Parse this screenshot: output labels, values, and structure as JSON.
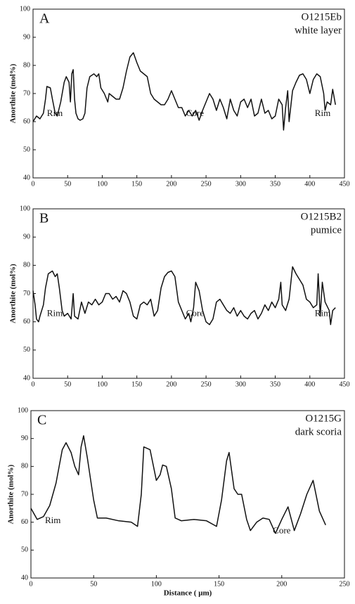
{
  "chart_data": [
    {
      "type": "line",
      "panel_label": "A",
      "sample": "O1215Eb",
      "description": "white layer",
      "ylabel": "Anorthite (mol%)",
      "annotations": [
        "Rim",
        "Core",
        "Rim"
      ],
      "color": "#111111",
      "x": [
        0,
        5,
        10,
        15,
        18,
        20,
        25,
        28,
        32,
        35,
        40,
        45,
        48,
        52,
        54,
        56,
        58,
        60,
        62,
        65,
        68,
        72,
        75,
        78,
        82,
        88,
        92,
        95,
        98,
        103,
        108,
        110,
        115,
        120,
        125,
        130,
        135,
        140,
        145,
        150,
        155,
        160,
        165,
        170,
        175,
        180,
        185,
        190,
        195,
        200,
        205,
        210,
        215,
        220,
        225,
        230,
        235,
        240,
        245,
        250,
        255,
        260,
        265,
        270,
        275,
        280,
        285,
        290,
        295,
        300,
        305,
        310,
        315,
        320,
        325,
        330,
        335,
        340,
        345,
        350,
        355,
        360,
        362,
        365,
        368,
        370,
        375,
        380,
        385,
        390,
        395,
        400,
        405,
        410,
        415,
        420,
        422,
        425,
        430,
        433,
        437
      ],
      "values": [
        60,
        62,
        61,
        63,
        68,
        72.5,
        72,
        68,
        63,
        62,
        67,
        74,
        76,
        74,
        67,
        77,
        78.5,
        68,
        63,
        61,
        60.5,
        61,
        63,
        72,
        76,
        77,
        76,
        77,
        72,
        70,
        67,
        70,
        69,
        68,
        68,
        72,
        78,
        83,
        84.5,
        81,
        78,
        77,
        76,
        70,
        68,
        67,
        66,
        66,
        68,
        71,
        68,
        65,
        65,
        62,
        64,
        62,
        64,
        60.5,
        64,
        67,
        70,
        68,
        64,
        68,
        65,
        61,
        68,
        64,
        62,
        67,
        68,
        65,
        68,
        62,
        63,
        68,
        63,
        64,
        61,
        62,
        68,
        66,
        57,
        65,
        71,
        60,
        71,
        74,
        76.5,
        77,
        75,
        70,
        75,
        77,
        76,
        70,
        64,
        67,
        66,
        71.5,
        66
      ],
      "xlim": [
        0,
        450
      ],
      "xticks": [
        0,
        50,
        100,
        150,
        200,
        250,
        300,
        350,
        400,
        450
      ],
      "ylim": [
        40,
        100
      ],
      "yticks": [
        40,
        50,
        60,
        70,
        80,
        90,
        100
      ]
    },
    {
      "type": "line",
      "panel_label": "B",
      "sample": "O1215B2",
      "description": "pumice",
      "ylabel": "Anorthite (mol%)",
      "annotations": [
        "Rim",
        "Core",
        "Rim"
      ],
      "color": "#111111",
      "x": [
        0,
        3,
        5,
        8,
        10,
        15,
        18,
        22,
        28,
        32,
        35,
        38,
        42,
        45,
        50,
        55,
        58,
        60,
        65,
        70,
        75,
        80,
        85,
        90,
        95,
        100,
        105,
        110,
        115,
        120,
        125,
        130,
        135,
        140,
        145,
        150,
        155,
        160,
        165,
        170,
        175,
        180,
        185,
        190,
        195,
        200,
        205,
        210,
        215,
        220,
        225,
        228,
        232,
        235,
        240,
        245,
        250,
        255,
        260,
        265,
        270,
        275,
        280,
        285,
        290,
        295,
        300,
        305,
        310,
        315,
        320,
        325,
        330,
        335,
        340,
        345,
        350,
        355,
        358,
        360,
        365,
        370,
        375,
        380,
        385,
        390,
        395,
        400,
        405,
        410,
        412,
        415,
        418,
        422,
        428,
        430,
        433,
        437
      ],
      "values": [
        71,
        66,
        61,
        60,
        62,
        66,
        72,
        77,
        78,
        76,
        77,
        72,
        64,
        62,
        63,
        61,
        70,
        62,
        61,
        67,
        63,
        67,
        66,
        68,
        66,
        67,
        70,
        70,
        68,
        69,
        67,
        71,
        70,
        67,
        62,
        61,
        66,
        67,
        66,
        68,
        62,
        64,
        72,
        76,
        77.5,
        78,
        76,
        67,
        64,
        61,
        63,
        60,
        65,
        74,
        71,
        64,
        60,
        59,
        61,
        67,
        68,
        66,
        64,
        63,
        65,
        62,
        64,
        62,
        61,
        63,
        64,
        61,
        63,
        66,
        64,
        67,
        65,
        68,
        74,
        66,
        64,
        68,
        79.5,
        77,
        75,
        73,
        68,
        67,
        65,
        66,
        77,
        62,
        74,
        67,
        64,
        59,
        64,
        65
      ],
      "xlim": [
        0,
        450
      ],
      "xticks": [
        0,
        50,
        100,
        150,
        200,
        250,
        300,
        350,
        400,
        450
      ],
      "ylim": [
        40,
        100
      ],
      "yticks": [
        40,
        50,
        60,
        70,
        80,
        90,
        100
      ]
    },
    {
      "type": "line",
      "panel_label": "C",
      "sample": "O1215G",
      "description": "dark scoria",
      "ylabel": "Anorthite (mol%)",
      "xlabel": "Distance ( μm)",
      "annotations": [
        "Rim",
        "Core"
      ],
      "color": "#111111",
      "x": [
        0,
        5,
        10,
        15,
        20,
        25,
        28,
        32,
        35,
        38,
        40,
        42,
        45,
        50,
        53,
        60,
        70,
        80,
        85,
        88,
        90,
        95,
        100,
        103,
        105,
        108,
        112,
        115,
        120,
        130,
        140,
        148,
        152,
        156,
        158,
        162,
        165,
        168,
        172,
        175,
        180,
        185,
        190,
        195,
        200,
        205,
        210,
        215,
        220,
        225,
        230,
        235
      ],
      "values": [
        65,
        61,
        62,
        66,
        74,
        86,
        88.5,
        85,
        80,
        77,
        87,
        91,
        83,
        68,
        61.5,
        61.5,
        60.5,
        60,
        58.5,
        70,
        87,
        86,
        75,
        77,
        80.5,
        80,
        72,
        61.5,
        60.5,
        61,
        60.5,
        58.5,
        68,
        82,
        85,
        72,
        70,
        70,
        61,
        57,
        60,
        61.5,
        61,
        56,
        61,
        65.5,
        57,
        63,
        70,
        75,
        64,
        59
      ],
      "xlim": [
        0,
        250
      ],
      "xticks": [
        0,
        50,
        100,
        150,
        200,
        250
      ],
      "ylim": [
        40,
        100
      ],
      "yticks": [
        40,
        50,
        60,
        70,
        80,
        90,
        100
      ]
    }
  ]
}
